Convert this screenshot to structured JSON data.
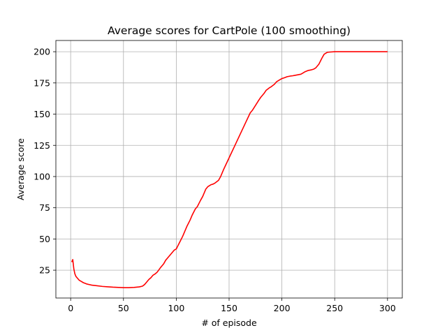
{
  "chart_data": {
    "type": "line",
    "title": "Average scores for CartPole (100 smoothing)",
    "xlabel": "# of episode",
    "ylabel": "Average score",
    "xlim": [
      -14,
      314
    ],
    "ylim": [
      2.7,
      209
    ],
    "xticks": [
      0,
      50,
      100,
      150,
      200,
      250,
      300
    ],
    "yticks": [
      25,
      50,
      75,
      100,
      125,
      150,
      175,
      200
    ],
    "grid": true,
    "series": [
      {
        "color": "#ff0000",
        "x": [
          1,
          2,
          3,
          4,
          5,
          6,
          7,
          8,
          10,
          12,
          15,
          20,
          25,
          30,
          35,
          40,
          45,
          50,
          55,
          60,
          65,
          68,
          70,
          72,
          74,
          76,
          78,
          80,
          82,
          85,
          88,
          90,
          92,
          95,
          98,
          100,
          103,
          106,
          110,
          113,
          115,
          118,
          120,
          123,
          125,
          128,
          130,
          133,
          135,
          137,
          140,
          142,
          145,
          150,
          155,
          160,
          165,
          170,
          172,
          175,
          178,
          180,
          183,
          185,
          188,
          190,
          193,
          195,
          198,
          200,
          202,
          205,
          208,
          210,
          212,
          215,
          218,
          220,
          222,
          225,
          228,
          230,
          232,
          235,
          238,
          240,
          243,
          245,
          250,
          255,
          260,
          270,
          280,
          290,
          300
        ],
        "y": [
          31.5,
          33.5,
          26,
          22,
          20,
          19,
          18,
          17,
          16,
          15,
          14,
          13,
          12.5,
          12,
          11.7,
          11.4,
          11.2,
          11,
          11,
          11.2,
          11.6,
          12.2,
          13.5,
          15.5,
          17.5,
          19,
          21,
          22,
          23.5,
          27,
          30,
          33,
          35,
          38,
          41,
          42,
          47,
          52,
          60,
          65,
          69,
          74,
          76,
          81,
          84,
          90,
          92,
          93.5,
          94,
          95,
          97,
          100,
          106,
          115,
          124,
          133,
          142,
          151,
          153,
          157,
          161,
          163.5,
          166.5,
          169,
          171,
          172,
          174,
          176,
          177.5,
          178.5,
          179,
          180,
          180.5,
          180.7,
          181,
          181.5,
          182,
          183,
          184,
          185,
          185.5,
          186,
          187,
          190,
          195,
          198,
          199.5,
          199.7,
          200,
          200,
          200,
          200,
          200,
          200,
          200
        ]
      }
    ]
  }
}
